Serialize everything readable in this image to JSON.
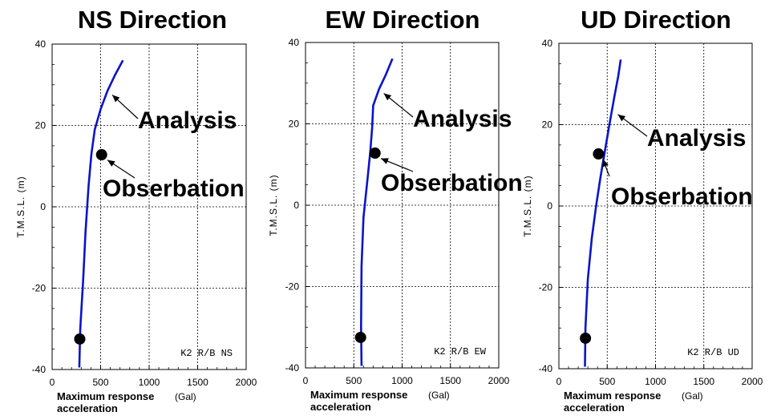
{
  "colors": {
    "line": "#0a14c8",
    "marker": "#000000",
    "grid": "#000000"
  },
  "chart_data": [
    {
      "type": "line",
      "title": "NS Direction",
      "tag": "K2 R/B NS",
      "ylabel": "T.M.S.L. (m)",
      "xlabel_line1": "Maximum response",
      "xlabel_unit": "(Gal)",
      "xlabel_line2": "acceleration",
      "xlim": [
        0,
        2000
      ],
      "ylim": [
        -40,
        40
      ],
      "xticks": [
        0,
        500,
        1000,
        1500,
        2000
      ],
      "yticks": [
        40,
        20,
        0,
        -20,
        -40
      ],
      "grid": true,
      "series": [
        {
          "name": "Analysis",
          "style": "line",
          "points": [
            [
              280,
              -39.5
            ],
            [
              290,
              -30
            ],
            [
              320,
              -18
            ],
            [
              345,
              -6
            ],
            [
              375,
              5
            ],
            [
              405,
              13
            ],
            [
              440,
              19
            ],
            [
              500,
              24
            ],
            [
              570,
              28.5
            ],
            [
              650,
              32.5
            ],
            [
              730,
              36
            ]
          ]
        },
        {
          "name": "Obserbation",
          "style": "marker",
          "points": [
            [
              510,
              12.8
            ],
            [
              285,
              -32.5
            ]
          ]
        }
      ],
      "annotations": [
        {
          "text": "Analysis",
          "target": [
            620,
            27.5
          ]
        },
        {
          "text": "Obserbation",
          "target": [
            570,
            11.5
          ]
        }
      ]
    },
    {
      "type": "line",
      "title": "EW Direction",
      "tag": "K2 R/B EW",
      "ylabel": "T.M.S.L. (m)",
      "xlabel_line1": "Maximum response",
      "xlabel_unit": "(Gal)",
      "xlabel_line2": "acceleration",
      "xlim": [
        0,
        2000
      ],
      "ylim": [
        -40,
        40
      ],
      "xticks": [
        0,
        500,
        1000,
        1500,
        2000
      ],
      "yticks": [
        40,
        20,
        0,
        -20,
        -40
      ],
      "grid": true,
      "series": [
        {
          "name": "Analysis",
          "style": "line",
          "points": [
            [
              580,
              -39.5
            ],
            [
              575,
              -30
            ],
            [
              580,
              -15
            ],
            [
              600,
              -3
            ],
            [
              640,
              6
            ],
            [
              670,
              13
            ],
            [
              690,
              19
            ],
            [
              700,
              24.5
            ],
            [
              760,
              28.5
            ],
            [
              830,
              32
            ],
            [
              900,
              36
            ]
          ]
        },
        {
          "name": "Obserbation",
          "style": "marker",
          "points": [
            [
              720,
              12.8
            ],
            [
              570,
              -32.5
            ]
          ]
        }
      ],
      "annotations": [
        {
          "text": "Analysis",
          "target": [
            810,
            27.5
          ]
        },
        {
          "text": "Obserbation",
          "target": [
            780,
            11.5
          ]
        }
      ]
    },
    {
      "type": "line",
      "title": "UD Direction",
      "tag": "K2 R/B UD",
      "ylabel": "T.M.S.L. (m)",
      "xlabel_line1": "Maximum response",
      "xlabel_unit": "(Gal)",
      "xlabel_line2": "acceleration",
      "xlim": [
        0,
        2000
      ],
      "ylim": [
        -40,
        40
      ],
      "xticks": [
        0,
        500,
        1000,
        1500,
        2000
      ],
      "yticks": [
        40,
        20,
        0,
        -20,
        -40
      ],
      "grid": true,
      "series": [
        {
          "name": "Analysis",
          "style": "line",
          "points": [
            [
              270,
              -39.5
            ],
            [
              275,
              -30
            ],
            [
              300,
              -18
            ],
            [
              340,
              -8
            ],
            [
              385,
              0
            ],
            [
              430,
              7
            ],
            [
              480,
              14
            ],
            [
              530,
              21
            ],
            [
              575,
              27
            ],
            [
              615,
              32
            ],
            [
              640,
              36
            ]
          ]
        },
        {
          "name": "Obserbation",
          "style": "marker",
          "points": [
            [
              410,
              12.8
            ],
            [
              275,
              -32.5
            ]
          ]
        }
      ],
      "annotations": [
        {
          "text": "Analysis",
          "target": [
            610,
            22.5
          ]
        },
        {
          "text": "Obserbation",
          "target": [
            455,
            11.5
          ]
        }
      ]
    }
  ]
}
